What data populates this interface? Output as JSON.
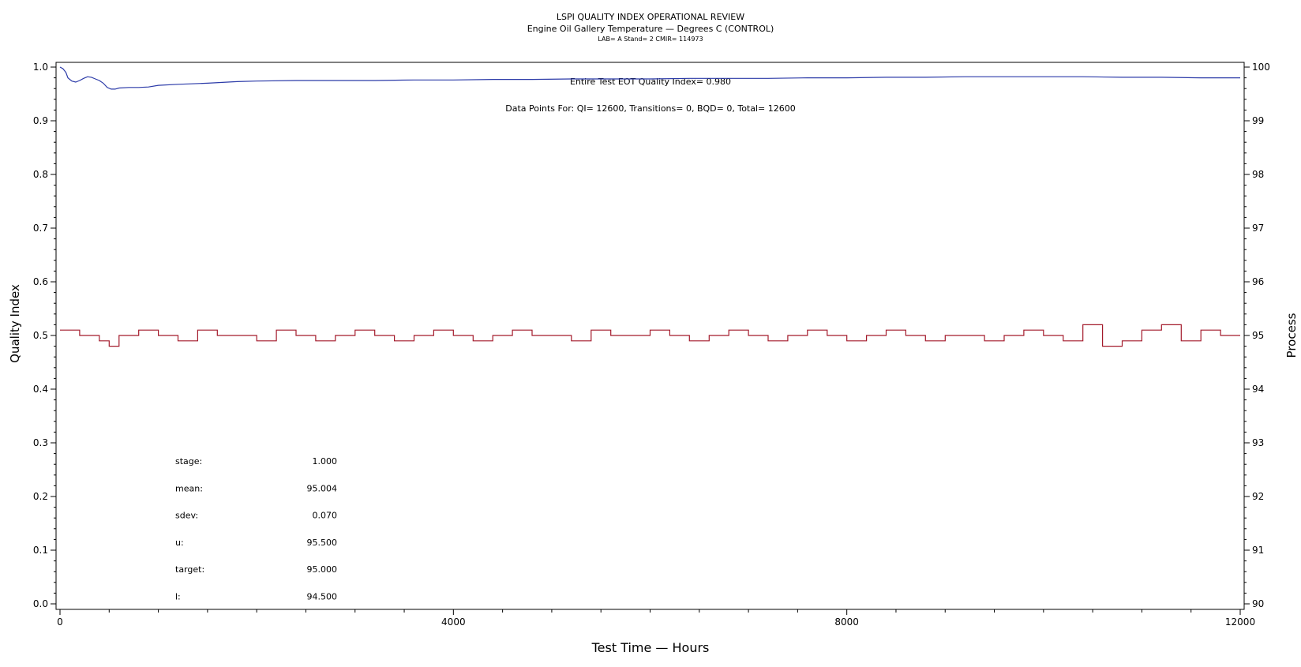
{
  "colors": {
    "qi_line": "#2b3aa8",
    "process_line": "#a31a2b",
    "axis": "#000000",
    "background": "#ffffff"
  },
  "chart_data": {
    "type": "line",
    "title": "LSPI QUALITY INDEX OPERATIONAL REVIEW",
    "subtitle": "Engine Oil Gallery Temperature — Degrees C (CONTROL)",
    "subtitle2": "LAB= A Stand= 2 CMIR= 114973",
    "xlabel": "Test Time — Hours",
    "ylabel_left": "Quality Index",
    "ylabel_right": "Process",
    "xlim": [
      0,
      12000
    ],
    "ylim_left": [
      0.0,
      1.0
    ],
    "ylim_right": [
      90,
      100
    ],
    "x_ticks": [
      "0",
      "4000",
      "8000",
      "12000"
    ],
    "y_ticks_left": [
      "0.0",
      "0.1",
      "0.2",
      "0.3",
      "0.4",
      "0.5",
      "0.6",
      "0.7",
      "0.8",
      "0.9",
      "1.0"
    ],
    "y_ticks_right": [
      "90",
      "91",
      "92",
      "93",
      "94",
      "95",
      "96",
      "97",
      "98",
      "99",
      "100"
    ],
    "grid": false,
    "annotations": {
      "qi_text": "Entire Test EOT Quality Index=   0.980",
      "points_text": "Data Points For: QI= 12600, Transitions=     0, BQD=     0, Total= 12600"
    },
    "stats": [
      {
        "label": "stage:",
        "value": "1.000"
      },
      {
        "label": "mean:",
        "value": "95.004"
      },
      {
        "label": "sdev:",
        "value": "0.070"
      },
      {
        "label": "u:",
        "value": "95.500"
      },
      {
        "label": "target:",
        "value": "95.000"
      },
      {
        "label": "l:",
        "value": "94.500"
      }
    ],
    "series": [
      {
        "axis": "left",
        "x": [
          0,
          30,
          60,
          80,
          120,
          160,
          200,
          240,
          280,
          320,
          360,
          400,
          440,
          480,
          520,
          560,
          600,
          700,
          800,
          900,
          1000,
          1200,
          1500,
          1800,
          2000,
          2400,
          2800,
          3200,
          3600,
          4000,
          4400,
          4800,
          5200,
          5600,
          6000,
          6400,
          6800,
          7200,
          7600,
          8000,
          8400,
          8800,
          9200,
          9600,
          10000,
          10400,
          10800,
          11200,
          11600,
          12000
        ],
        "values": [
          1.0,
          0.997,
          0.99,
          0.98,
          0.974,
          0.972,
          0.975,
          0.979,
          0.982,
          0.981,
          0.978,
          0.975,
          0.97,
          0.962,
          0.959,
          0.959,
          0.961,
          0.962,
          0.962,
          0.963,
          0.966,
          0.968,
          0.97,
          0.973,
          0.974,
          0.975,
          0.975,
          0.975,
          0.976,
          0.976,
          0.977,
          0.977,
          0.978,
          0.978,
          0.978,
          0.979,
          0.979,
          0.979,
          0.98,
          0.98,
          0.981,
          0.981,
          0.982,
          0.982,
          0.982,
          0.982,
          0.981,
          0.981,
          0.98,
          0.98
        ]
      },
      {
        "axis": "right",
        "x": [
          0,
          200,
          400,
          500,
          600,
          800,
          1000,
          1200,
          1400,
          1600,
          1800,
          2000,
          2200,
          2400,
          2600,
          2800,
          3000,
          3200,
          3400,
          3600,
          3800,
          4000,
          4200,
          4400,
          4600,
          4800,
          5000,
          5200,
          5400,
          5600,
          5800,
          6000,
          6200,
          6400,
          6600,
          6800,
          7000,
          7200,
          7400,
          7600,
          7800,
          8000,
          8200,
          8400,
          8600,
          8800,
          9000,
          9200,
          9400,
          9600,
          9800,
          10000,
          10200,
          10400,
          10600,
          10800,
          11000,
          11200,
          11400,
          11600,
          11800,
          12000
        ],
        "values": [
          95.1,
          95.0,
          94.9,
          94.8,
          95.0,
          95.1,
          95.0,
          94.9,
          95.1,
          95.0,
          95.0,
          94.9,
          95.1,
          95.0,
          94.9,
          95.0,
          95.1,
          95.0,
          94.9,
          95.0,
          95.1,
          95.0,
          94.9,
          95.0,
          95.1,
          95.0,
          95.0,
          94.9,
          95.1,
          95.0,
          95.0,
          95.1,
          95.0,
          94.9,
          95.0,
          95.1,
          95.0,
          94.9,
          95.0,
          95.1,
          95.0,
          94.9,
          95.0,
          95.1,
          95.0,
          94.9,
          95.0,
          95.0,
          94.9,
          95.0,
          95.1,
          95.0,
          94.9,
          95.2,
          94.8,
          94.9,
          95.1,
          95.2,
          94.9,
          95.1,
          95.0,
          95.0
        ]
      }
    ]
  }
}
